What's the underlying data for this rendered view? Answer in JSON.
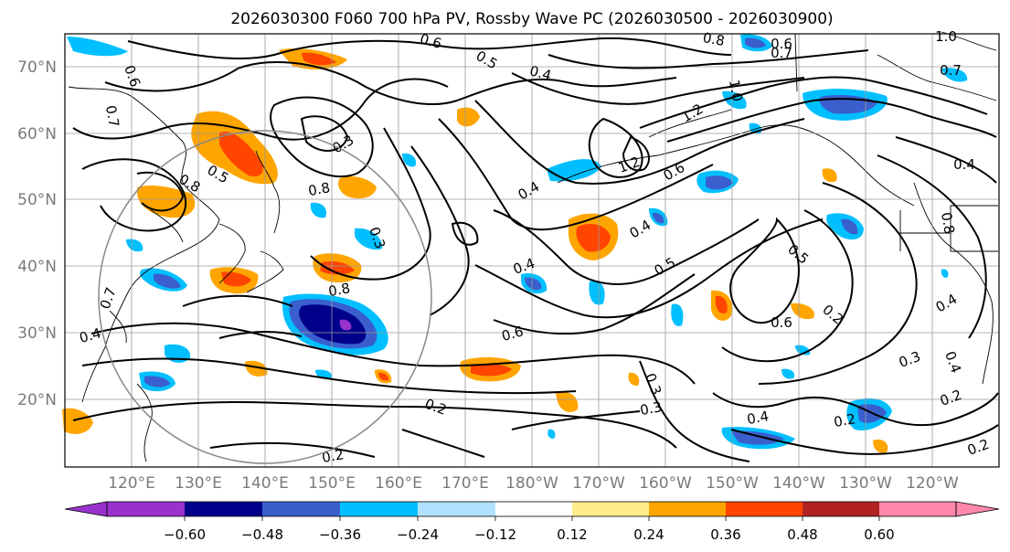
{
  "title": "2026030300 F060 700 hPa PV, Rossby Wave PC (2026030500 - 2026030900)",
  "colors": {
    "land": "#000000",
    "grid": "#9a9a9a",
    "contour": "#000000",
    "circle": "#888888",
    "axis_label": "#7a7a7a"
  },
  "lat_labels": [
    "70°N",
    "60°N",
    "50°N",
    "40°N",
    "30°N",
    "20°N"
  ],
  "lon_labels": [
    "120°E",
    "130°E",
    "140°E",
    "150°E",
    "160°E",
    "170°E",
    "180°W",
    "170°W",
    "160°W",
    "150°W",
    "140°W",
    "130°W",
    "120°W"
  ],
  "colorbar": {
    "colors": [
      "#9932cc",
      "#00008b",
      "#3a5fcd",
      "#00bfff",
      "#b0e2ff",
      "#ffffff",
      "#ffec8b",
      "#ffa500",
      "#ff4500",
      "#b22222",
      "#ff88aa"
    ],
    "tick_labels": [
      "−0.60",
      "−0.48",
      "−0.36",
      "−0.24",
      "−0.12",
      "0.12",
      "0.24",
      "0.36",
      "0.48",
      "0.60"
    ]
  },
  "contour_labels": [
    "0.6",
    "0.5",
    "0.4",
    "0.8",
    "0.6",
    "0.7",
    "1.0",
    "0.7",
    "0.6",
    "0.7",
    "0.3",
    "0.5",
    "0.8",
    "0.8",
    "0.4",
    "1.2",
    "0.6",
    "1.2",
    "1.0",
    "0.4",
    "0.4",
    "0.3",
    "0.8",
    "0.4",
    "0.5",
    "0.5",
    "0.6",
    "0.2",
    "0.4",
    "0.8",
    "0.7",
    "0.4",
    "0.6",
    "0.3",
    "0.3",
    "0.4",
    "0.3",
    "0.2",
    "0.2",
    "0.2",
    "0.4",
    "0.2",
    "0.2"
  ]
}
